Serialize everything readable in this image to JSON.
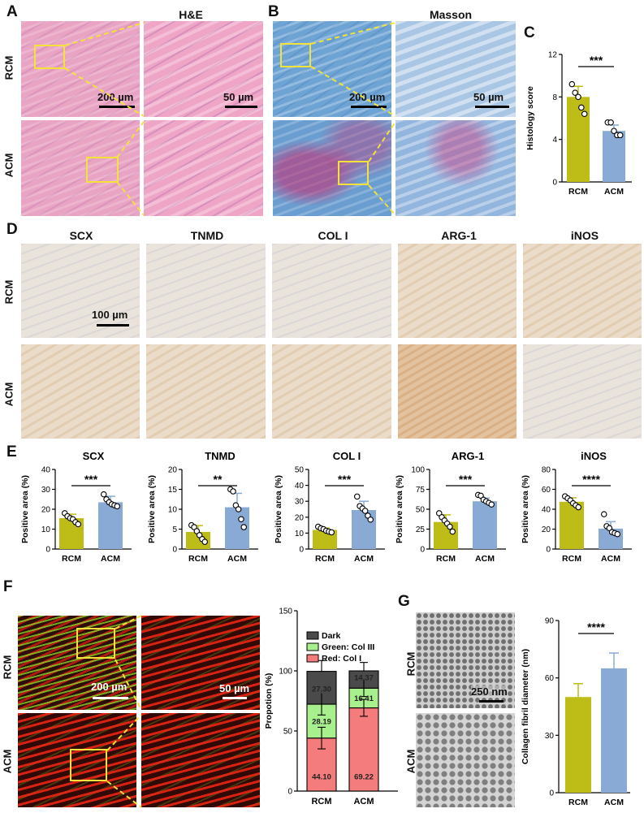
{
  "panels": {
    "A": "A",
    "B": "B",
    "C": "C",
    "D": "D",
    "E": "E",
    "F": "F",
    "G": "G"
  },
  "groups": {
    "rcm": "RCM",
    "acm": "ACM"
  },
  "titles": {
    "he": "H&E",
    "masson": "Masson",
    "scx": "SCX",
    "tnmd": "TNMD",
    "col1": "COL I",
    "arg1": "ARG-1",
    "inos": "iNOS"
  },
  "scalebars": {
    "a_low": "200 µm",
    "a_high": "50 µm",
    "b_low": "200 µm",
    "b_high": "50 µm",
    "d": "100 µm",
    "f_low": "200 µm",
    "f_high": "50 µm",
    "g": "250 nm"
  },
  "colors": {
    "rcm": "#bebd17",
    "acm": "#88aad4",
    "red": "#f47c7c",
    "green": "#a8f08d",
    "dark": "#4a4a4a"
  },
  "chart_data": [
    {
      "id": "C",
      "type": "bar",
      "ylabel": "Histology score",
      "categories": [
        "RCM",
        "ACM"
      ],
      "values": [
        8.0,
        4.8
      ],
      "errors": [
        1.0,
        0.55
      ],
      "ylim": [
        0,
        12
      ],
      "yticks": [
        0,
        4,
        8,
        12
      ],
      "points": [
        [
          9.2,
          8.4,
          8.0,
          7.0,
          6.4
        ],
        [
          5.6,
          5.6,
          4.8,
          4.4,
          4.4
        ]
      ],
      "significance": "***"
    },
    {
      "id": "E1",
      "type": "bar",
      "title": "SCX",
      "ylabel": "Positive area (%)",
      "categories": [
        "RCM",
        "ACM"
      ],
      "values": [
        15.5,
        23.5
      ],
      "errors": [
        2.0,
        3.0
      ],
      "ylim": [
        0,
        40
      ],
      "yticks": [
        0,
        10,
        20,
        30,
        40
      ],
      "points": [
        [
          18,
          16.5,
          15.5,
          15,
          13.5,
          12.5
        ],
        [
          27.5,
          25,
          23.5,
          22.5,
          22,
          21.5
        ]
      ],
      "significance": "***"
    },
    {
      "id": "E2",
      "type": "bar",
      "title": "TNMD",
      "ylabel": "Positive area (%)",
      "categories": [
        "RCM",
        "ACM"
      ],
      "values": [
        4.3,
        10.5
      ],
      "errors": [
        1.6,
        3.5
      ],
      "ylim": [
        0,
        20
      ],
      "yticks": [
        0,
        5,
        10,
        15,
        20
      ],
      "points": [
        [
          6,
          5.5,
          4.5,
          3.5,
          2.5,
          1.8
        ],
        [
          15,
          14.5,
          11,
          10,
          7.5,
          5.5
        ]
      ],
      "significance": "**"
    },
    {
      "id": "E3",
      "type": "bar",
      "title": "COL I",
      "ylabel": "Positive area (%)",
      "categories": [
        "RCM",
        "ACM"
      ],
      "values": [
        12.0,
        24.5
      ],
      "errors": [
        1.2,
        5.5
      ],
      "ylim": [
        0,
        50
      ],
      "yticks": [
        0,
        10,
        20,
        30,
        40,
        50
      ],
      "points": [
        [
          14,
          13,
          12.5,
          11.5,
          11,
          10.5
        ],
        [
          33,
          27,
          25.5,
          24,
          21,
          18.5
        ]
      ],
      "significance": "***"
    },
    {
      "id": "E4",
      "type": "bar",
      "title": "ARG-1",
      "ylabel": "Positive area (%)",
      "categories": [
        "RCM",
        "ACM"
      ],
      "values": [
        34,
        60
      ],
      "errors": [
        9,
        4
      ],
      "ylim": [
        0,
        100
      ],
      "yticks": [
        0,
        25,
        50,
        75,
        100
      ],
      "points": [
        [
          45,
          40,
          36,
          32,
          28,
          22
        ],
        [
          68,
          67,
          62,
          60,
          58,
          56
        ]
      ],
      "significance": "***"
    },
    {
      "id": "E5",
      "type": "bar",
      "title": "iNOS",
      "ylabel": "Positive area (%)",
      "categories": [
        "RCM",
        "ACM"
      ],
      "values": [
        47.5,
        20.5
      ],
      "errors": [
        4,
        7
      ],
      "ylim": [
        0,
        80
      ],
      "yticks": [
        0,
        20,
        40,
        60,
        80
      ],
      "points": [
        [
          53,
          51,
          49,
          46,
          44,
          42
        ],
        [
          35,
          23,
          21,
          17,
          16,
          15
        ]
      ],
      "significance": "****"
    },
    {
      "id": "F",
      "type": "bar",
      "stacked": true,
      "ylabel": "Propotion (%)",
      "categories": [
        "RCM",
        "ACM"
      ],
      "ylim": [
        0,
        150
      ],
      "yticks": [
        0,
        50,
        100,
        150
      ],
      "series": [
        {
          "name": "Red: Col I",
          "values": [
            44.1,
            69.22
          ]
        },
        {
          "name": "Green: Col III",
          "values": [
            28.19,
            16.41
          ]
        },
        {
          "name": "Dark",
          "values": [
            27.3,
            14.37
          ]
        }
      ],
      "labels": [
        "44.10",
        "69.22",
        "28.19",
        "16.41",
        "27.30",
        "14.37"
      ],
      "errors": [
        9,
        7
      ],
      "legend": "top-left"
    },
    {
      "id": "G",
      "type": "bar",
      "ylabel": "Collagen fibril diameter (nm)",
      "categories": [
        "RCM",
        "ACM"
      ],
      "values": [
        50,
        65
      ],
      "errors": [
        7,
        8
      ],
      "ylim": [
        0,
        90
      ],
      "yticks": [
        0,
        30,
        60,
        90
      ],
      "significance": "****"
    }
  ]
}
